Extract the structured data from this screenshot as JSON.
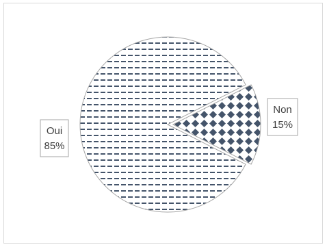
{
  "chart_data": {
    "type": "pie",
    "categories": [
      "Non",
      "Oui"
    ],
    "values": [
      15,
      85
    ],
    "value_labels": [
      "15%",
      "85%"
    ],
    "fills": [
      "diamond-pattern",
      "dash-pattern"
    ],
    "colors": {
      "pattern": "#44546a",
      "background": "#ffffff",
      "border": "#a6a6a6",
      "label_text": "#404040"
    },
    "exploded_slice": "Non"
  }
}
